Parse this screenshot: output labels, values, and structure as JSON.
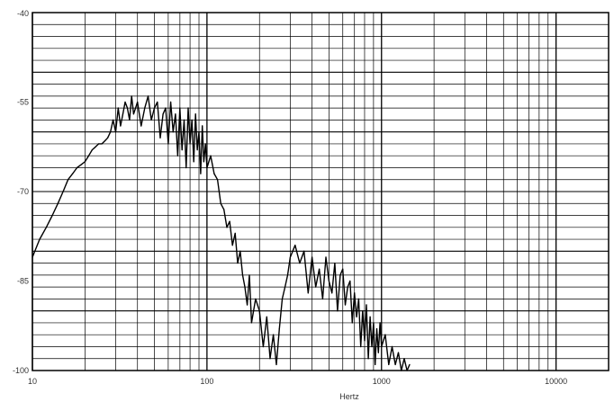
{
  "chart_data": {
    "type": "line",
    "title": "",
    "xlabel": "Hertz",
    "ylabel": "",
    "x_scale": "log",
    "xlim": [
      10,
      20000
    ],
    "ylim": [
      -100,
      -40
    ],
    "grid": true,
    "x_tick_labels": [
      {
        "value": 10,
        "label": "10"
      },
      {
        "value": 100,
        "label": "100"
      },
      {
        "value": 1000,
        "label": "1000"
      },
      {
        "value": 10000,
        "label": "10000"
      }
    ],
    "y_tick_labels": [
      {
        "value": -40,
        "label": "-40"
      },
      {
        "value": -55,
        "label": "-55"
      },
      {
        "value": -70,
        "label": "-70"
      },
      {
        "value": -85,
        "label": "-85"
      },
      {
        "value": -100,
        "label": "-100"
      }
    ],
    "series": [
      {
        "x": [
          10,
          11,
          12,
          13,
          14,
          15,
          16,
          17,
          18,
          19,
          20,
          21,
          22,
          23,
          24,
          25,
          26,
          27,
          28,
          29,
          30,
          31,
          32,
          33,
          34,
          35,
          36,
          37,
          38,
          39,
          40,
          42,
          44,
          46,
          48,
          50,
          52,
          54,
          56,
          58,
          60,
          62,
          64,
          66,
          68,
          70,
          72,
          74,
          76,
          78,
          80,
          82,
          84,
          86,
          88,
          90,
          92,
          94,
          96,
          98,
          100,
          105,
          110,
          115,
          120,
          125,
          130,
          135,
          140,
          145,
          150,
          155,
          160,
          165,
          170,
          175,
          180,
          190,
          200,
          210,
          220,
          230,
          240,
          250,
          260,
          270,
          280,
          290,
          300,
          320,
          340,
          360,
          380,
          400,
          420,
          440,
          460,
          480,
          500,
          520,
          540,
          560,
          580,
          600,
          620,
          640,
          660,
          680,
          700,
          720,
          740,
          760,
          780,
          800,
          820,
          840,
          860,
          880,
          900,
          920,
          940,
          960,
          980,
          1000,
          1050,
          1100,
          1150,
          1200,
          1250,
          1300,
          1350,
          1400,
          1450
        ],
        "values": [
          -81,
          -78,
          -76,
          -74,
          -72,
          -70,
          -68,
          -67,
          -66,
          -65.5,
          -65,
          -64,
          -63,
          -62.5,
          -62,
          -62,
          -61.5,
          -61,
          -60,
          -58,
          -60,
          -56,
          -59,
          -57,
          -55,
          -56,
          -58,
          -54,
          -57,
          -56,
          -55,
          -59,
          -56,
          -54,
          -58,
          -56,
          -55,
          -61,
          -57,
          -56,
          -62,
          -55,
          -60,
          -57,
          -64,
          -56,
          -63,
          -58,
          -66,
          -56,
          -62,
          -58,
          -65,
          -57,
          -63,
          -60,
          -67,
          -59,
          -65,
          -62,
          -66,
          -64,
          -67,
          -68,
          -72,
          -73,
          -76,
          -75,
          -79,
          -77,
          -82,
          -80,
          -84,
          -86,
          -89,
          -84,
          -92,
          -88,
          -90,
          -96,
          -91,
          -98,
          -94,
          -99,
          -93,
          -88,
          -86,
          -84,
          -81,
          -79,
          -82,
          -80,
          -87,
          -81,
          -86,
          -83,
          -88,
          -81,
          -85,
          -87,
          -82,
          -90,
          -84,
          -83,
          -89,
          -86,
          -85,
          -92,
          -87,
          -91,
          -88,
          -96,
          -90,
          -95,
          -89,
          -98,
          -91,
          -96,
          -92,
          -99,
          -93,
          -97,
          -92,
          -96,
          -94,
          -99,
          -96,
          -99,
          -97,
          -100,
          -98,
          -100,
          -99
        ]
      }
    ]
  }
}
